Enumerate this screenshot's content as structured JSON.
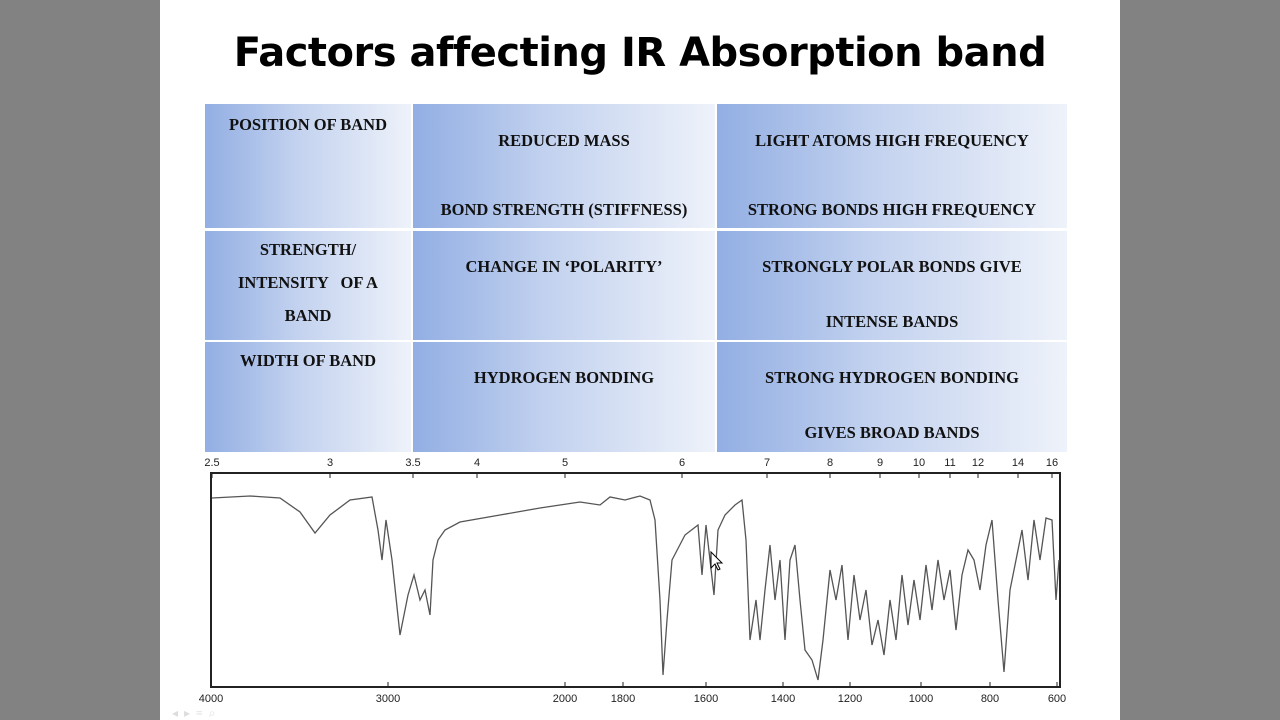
{
  "title": "Factors affecting IR Absorption band",
  "table": {
    "rows": [
      {
        "factor": [
          "POSITION OF BAND"
        ],
        "cause": [
          "REDUCED MASS",
          "BOND STRENGTH (STIFFNESS)"
        ],
        "effect": [
          "LIGHT ATOMS HIGH FREQUENCY",
          "STRONG BONDS HIGH FREQUENCY"
        ]
      },
      {
        "factor": [
          "STRENGTH/",
          "INTENSITY   OF A",
          "BAND"
        ],
        "cause": [
          "CHANGE IN ‘POLARITY’"
        ],
        "effect": [
          "STRONGLY POLAR BONDS GIVE",
          "INTENSE BANDS"
        ]
      },
      {
        "factor": [
          "WIDTH OF BAND"
        ],
        "cause": [
          "HYDROGEN BONDING"
        ],
        "effect": [
          "STRONG HYDROGEN BONDING",
          "GIVES BROAD BANDS"
        ]
      }
    ]
  },
  "spectrum": {
    "top_axis_labels": [
      "2.5",
      "3",
      "3.5",
      "4",
      "5",
      "6",
      "7",
      "8",
      "9",
      "10",
      "11",
      "12",
      "14",
      "16"
    ],
    "bottom_axis_labels": [
      "4000",
      "3000",
      "2000",
      "1800",
      "1600",
      "1400",
      "1200",
      "1000",
      "800",
      "600"
    ]
  },
  "colors": {
    "cell_dark": "#92aee3",
    "cell_light": "#eef2fa",
    "side_bars": "#828282"
  }
}
